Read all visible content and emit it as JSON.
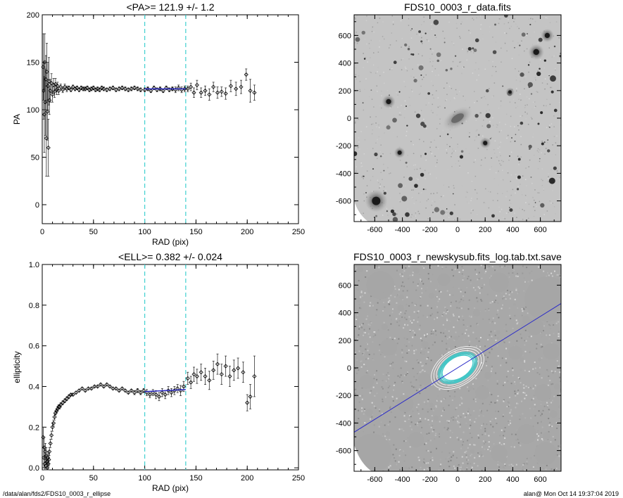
{
  "footer": {
    "path": "/data/alan/fds2/FDS10_0003_r_ellipse",
    "user_time": "alan@  Mon Oct 14 19:37:04 2019"
  },
  "colors": {
    "fit": "#2c2cc8",
    "guide": "#40d0d0",
    "points": "#000000",
    "ring": "#40c8c8"
  },
  "chart_data": [
    {
      "type": "scatter",
      "title": "<PA>= 121.9 +/-   1.2",
      "xlabel": "RAD (pix)",
      "ylabel": "PA",
      "xlim": [
        0,
        250
      ],
      "ylim": [
        -20,
        200
      ],
      "xticks": [
        0,
        50,
        100,
        150,
        200,
        250
      ],
      "yticks": [
        0,
        50,
        100,
        150,
        200
      ],
      "vlines": [
        100,
        140
      ],
      "fit_line": {
        "x": [
          100,
          140
        ],
        "y": [
          121.9,
          121.9
        ]
      },
      "series": [
        {
          "x": [
            1,
            1.5,
            2,
            2.5,
            3,
            3.5,
            4,
            4.5,
            5,
            5.5,
            6,
            6.5,
            7,
            8,
            9,
            10,
            11,
            12,
            13,
            14,
            15,
            16,
            18,
            20,
            22,
            24,
            26,
            28,
            30,
            32,
            34,
            36,
            38,
            40,
            42,
            44,
            46,
            48,
            50,
            52,
            54,
            56,
            58,
            60,
            63,
            66,
            69,
            72,
            75,
            78,
            81,
            84,
            87,
            90,
            93,
            96
          ],
          "y": [
            145,
            120,
            95,
            150,
            108,
            132,
            70,
            140,
            98,
            125,
            60,
            130,
            110,
            120,
            128,
            116,
            126,
            119,
            127,
            121,
            125,
            120,
            124,
            121,
            124,
            122,
            123,
            121,
            124,
            122,
            123,
            121,
            123,
            122,
            122,
            123,
            121,
            122,
            123,
            121,
            122,
            121,
            123,
            122,
            121,
            122,
            123,
            121,
            122,
            123,
            122,
            121,
            122,
            123,
            122,
            121
          ],
          "err": [
            35,
            30,
            40,
            30,
            35,
            25,
            40,
            30,
            30,
            25,
            30,
            25,
            15,
            12,
            10,
            8,
            7,
            6,
            6,
            5,
            4,
            4,
            3,
            3,
            3,
            3,
            2,
            2,
            2,
            2,
            2,
            2,
            2,
            2,
            2,
            2,
            2,
            2,
            2,
            2,
            2,
            2,
            2,
            2,
            2,
            2,
            2,
            2,
            2,
            2,
            2,
            2,
            2,
            2,
            2,
            2
          ]
        },
        {
          "x": [
            100,
            103,
            106,
            109,
            112,
            115,
            118,
            121,
            124,
            127,
            130,
            133,
            136,
            139
          ],
          "y": [
            121,
            122,
            120,
            123,
            121,
            122,
            120,
            123,
            121,
            122,
            121,
            123,
            121,
            122
          ],
          "err": [
            2,
            2,
            2,
            2,
            2,
            2,
            2,
            2,
            2,
            2,
            3,
            3,
            3,
            3
          ]
        },
        {
          "x": [
            142,
            145,
            148,
            151,
            155,
            159,
            163,
            167,
            171,
            175,
            179,
            184,
            189,
            194,
            199,
            203,
            207
          ],
          "y": [
            122,
            124,
            118,
            126,
            118,
            120,
            116,
            124,
            118,
            119,
            117,
            125,
            122,
            124,
            137,
            120,
            118
          ],
          "err": [
            3,
            4,
            5,
            5,
            5,
            5,
            6,
            5,
            6,
            5,
            6,
            6,
            7,
            7,
            6,
            12,
            8
          ]
        }
      ]
    },
    {
      "type": "image",
      "title": "FDS10_0003_r_data.fits",
      "xlim": [
        -750,
        750
      ],
      "ylim": [
        -750,
        750
      ],
      "xticks": [
        -600,
        -400,
        -200,
        0,
        200,
        400,
        600
      ],
      "yticks": [
        -600,
        -400,
        -200,
        0,
        200,
        400,
        600
      ]
    },
    {
      "type": "scatter",
      "title": "<ELL>= 0.382 +/-  0.024",
      "xlabel": "RAD (pix)",
      "ylabel": "ellipticity",
      "xlim": [
        0,
        250
      ],
      "ylim": [
        -0.01,
        1.0
      ],
      "xticks": [
        0,
        50,
        100,
        150,
        200,
        250
      ],
      "yticks": [
        "0.0",
        "0.2",
        "0.4",
        "0.6",
        "0.8",
        "1.0"
      ],
      "vlines": [
        100,
        140
      ],
      "fit_line": {
        "x": [
          100,
          140
        ],
        "y": [
          0.375,
          0.385
        ]
      },
      "series": [
        {
          "x": [
            1,
            1.5,
            2,
            2.5,
            3,
            3.5,
            4,
            4.5,
            5,
            5.5,
            6,
            6.5,
            7,
            8,
            9,
            10,
            11,
            12,
            13,
            14,
            15,
            16,
            17,
            18,
            20,
            22,
            24,
            26,
            28,
            30,
            33,
            36,
            39,
            42,
            45,
            48,
            51,
            54,
            57,
            60,
            63,
            66,
            69,
            72,
            75,
            78,
            81,
            84,
            87,
            90,
            93,
            96,
            99
          ],
          "y": [
            0.15,
            0.05,
            0.1,
            0.02,
            0.08,
            0.01,
            0.06,
            0.03,
            0.0,
            0.05,
            0.02,
            0.04,
            0.08,
            0.12,
            0.16,
            0.2,
            0.22,
            0.25,
            0.27,
            0.28,
            0.29,
            0.3,
            0.3,
            0.31,
            0.32,
            0.33,
            0.34,
            0.35,
            0.36,
            0.36,
            0.37,
            0.38,
            0.39,
            0.38,
            0.39,
            0.39,
            0.4,
            0.4,
            0.41,
            0.4,
            0.41,
            0.4,
            0.39,
            0.39,
            0.38,
            0.39,
            0.38,
            0.37,
            0.38,
            0.37,
            0.38,
            0.37,
            0.38
          ],
          "err": [
            0.05,
            0.05,
            0.05,
            0.04,
            0.04,
            0.04,
            0.04,
            0.03,
            0.03,
            0.03,
            0.03,
            0.03,
            0.02,
            0.02,
            0.02,
            0.02,
            0.015,
            0.015,
            0.01,
            0.01,
            0.01,
            0.01,
            0.01,
            0.01,
            0.01,
            0.01,
            0.01,
            0.01,
            0.005,
            0.005,
            0.005,
            0.005,
            0.005,
            0.005,
            0.005,
            0.005,
            0.005,
            0.005,
            0.005,
            0.005,
            0.005,
            0.005,
            0.005,
            0.005,
            0.005,
            0.005,
            0.005,
            0.005,
            0.005,
            0.01,
            0.01,
            0.01,
            0.01
          ]
        },
        {
          "x": [
            102,
            105,
            108,
            111,
            114,
            117,
            120,
            123,
            126,
            129,
            132,
            135,
            138
          ],
          "y": [
            0.37,
            0.36,
            0.37,
            0.36,
            0.35,
            0.37,
            0.36,
            0.38,
            0.37,
            0.38,
            0.39,
            0.38,
            0.4
          ],
          "err": [
            0.015,
            0.015,
            0.015,
            0.02,
            0.02,
            0.02,
            0.02,
            0.02,
            0.02,
            0.02,
            0.02,
            0.025,
            0.025
          ]
        },
        {
          "x": [
            142,
            145,
            148,
            151,
            155,
            159,
            163,
            167,
            171,
            175,
            179,
            183,
            187,
            191,
            196,
            200,
            203,
            207
          ],
          "y": [
            0.44,
            0.42,
            0.46,
            0.45,
            0.47,
            0.45,
            0.43,
            0.48,
            0.51,
            0.46,
            0.5,
            0.45,
            0.48,
            0.49,
            0.47,
            0.32,
            0.35,
            0.45
          ],
          "err": [
            0.03,
            0.03,
            0.035,
            0.035,
            0.04,
            0.04,
            0.045,
            0.045,
            0.05,
            0.05,
            0.05,
            0.05,
            0.05,
            0.05,
            0.05,
            0.04,
            0.06,
            0.1
          ]
        }
      ]
    },
    {
      "type": "image",
      "title": "FDS10_0003_r_newskysub.fits_log.tab.txt.save",
      "xlim": [
        -750,
        750
      ],
      "ylim": [
        -750,
        750
      ],
      "xticks": [
        -600,
        -400,
        -200,
        0,
        200,
        400,
        600
      ],
      "yticks": [
        -600,
        -400,
        -200,
        0,
        200,
        400,
        600
      ],
      "major_axis_pa": 121.9,
      "ellipse_ellipticity": 0.382
    }
  ]
}
